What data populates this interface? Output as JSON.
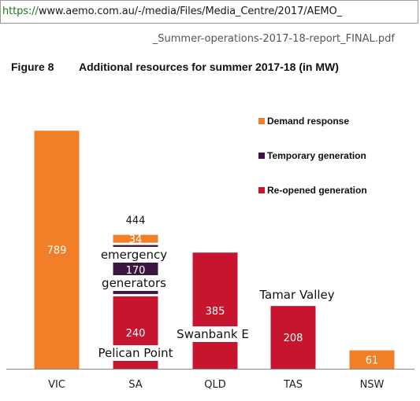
{
  "browser": {
    "url_scheme": "https://",
    "url_rest": "www.aemo.com.au/-/media/Files/Media_Centre/2017/AEMO_",
    "url_continuation": "_Summer-operations-2017-18-report_FINAL.pdf"
  },
  "figure": {
    "number": "Figure 8",
    "title": "Additional resources for summer 2017-18 (in MW)"
  },
  "chart_data": {
    "type": "bar",
    "stacked": true,
    "categories": [
      "VIC",
      "SA",
      "QLD",
      "TAS",
      "NSW"
    ],
    "series": [
      {
        "name": "Demand response",
        "color": "#F07F27",
        "values": [
          789,
          34,
          0,
          0,
          61
        ]
      },
      {
        "name": "Temporary generation",
        "color": "#3C1742",
        "values": [
          0,
          170,
          0,
          0,
          0
        ]
      },
      {
        "name": "Re-opened generation",
        "color": "#C8152F",
        "values": [
          0,
          240,
          385,
          208,
          0
        ]
      }
    ],
    "ylim": [
      0,
      800
    ],
    "legend_position": "top-right",
    "totals": [
      {
        "category": "SA",
        "label": "444"
      }
    ],
    "annotations": [
      {
        "category": "SA",
        "text": "emergency"
      },
      {
        "category": "SA",
        "text": "generators"
      },
      {
        "category": "SA",
        "text": "Pelican Point"
      },
      {
        "category": "QLD",
        "text": "Swanbank E"
      },
      {
        "category": "TAS",
        "text": "Tamar Valley"
      }
    ],
    "grid": false
  }
}
